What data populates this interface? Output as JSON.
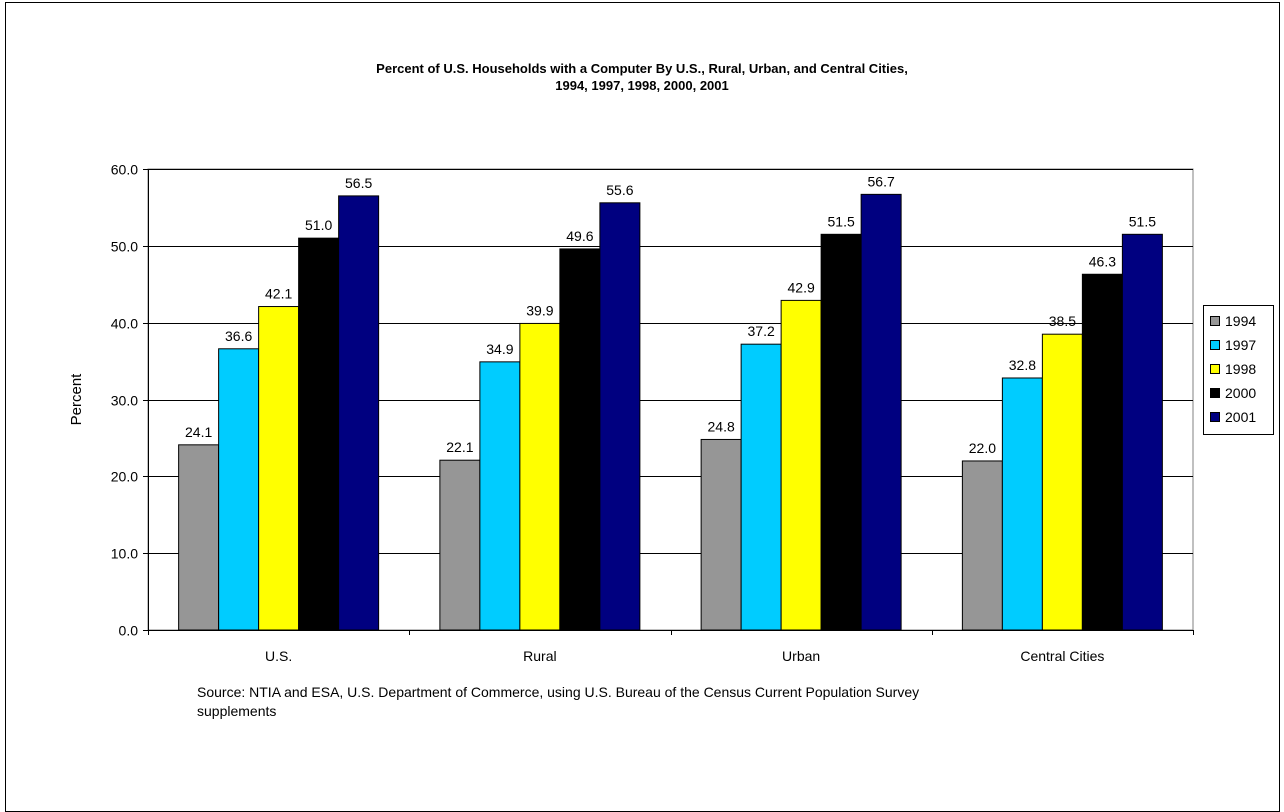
{
  "title": {
    "line1": "Percent of U.S. Households with a Computer By  U.S., Rural, Urban, and Central Cities,",
    "line2": "1994, 1997, 1998, 2000, 2001"
  },
  "source_note": {
    "line1": "Source:  NTIA and ESA, U.S. Department of Commerce, using U.S. Bureau of the Census Current Population Survey",
    "line2": "supplements"
  },
  "chart_data": {
    "type": "bar",
    "ylabel": "Percent",
    "xlabel": "",
    "ylim": [
      0,
      60
    ],
    "yticks": [
      "0.0",
      "10.0",
      "20.0",
      "30.0",
      "40.0",
      "50.0",
      "60.0"
    ],
    "categories": [
      "U.S.",
      "Rural",
      "Urban",
      "Central Cities"
    ],
    "grid": true,
    "legend_position": "right",
    "series": [
      {
        "name": "1994",
        "color": "#969696",
        "values": [
          24.1,
          22.1,
          24.8,
          22.0
        ]
      },
      {
        "name": "1997",
        "color": "#00ccff",
        "values": [
          36.6,
          34.9,
          37.2,
          32.8
        ]
      },
      {
        "name": "1998",
        "color": "#ffff00",
        "values": [
          42.1,
          39.9,
          42.9,
          38.5
        ]
      },
      {
        "name": "2000",
        "color": "#000000",
        "values": [
          51.0,
          49.6,
          51.5,
          46.3
        ]
      },
      {
        "name": "2001",
        "color": "#000080",
        "values": [
          56.5,
          55.6,
          56.7,
          51.5
        ]
      }
    ]
  }
}
